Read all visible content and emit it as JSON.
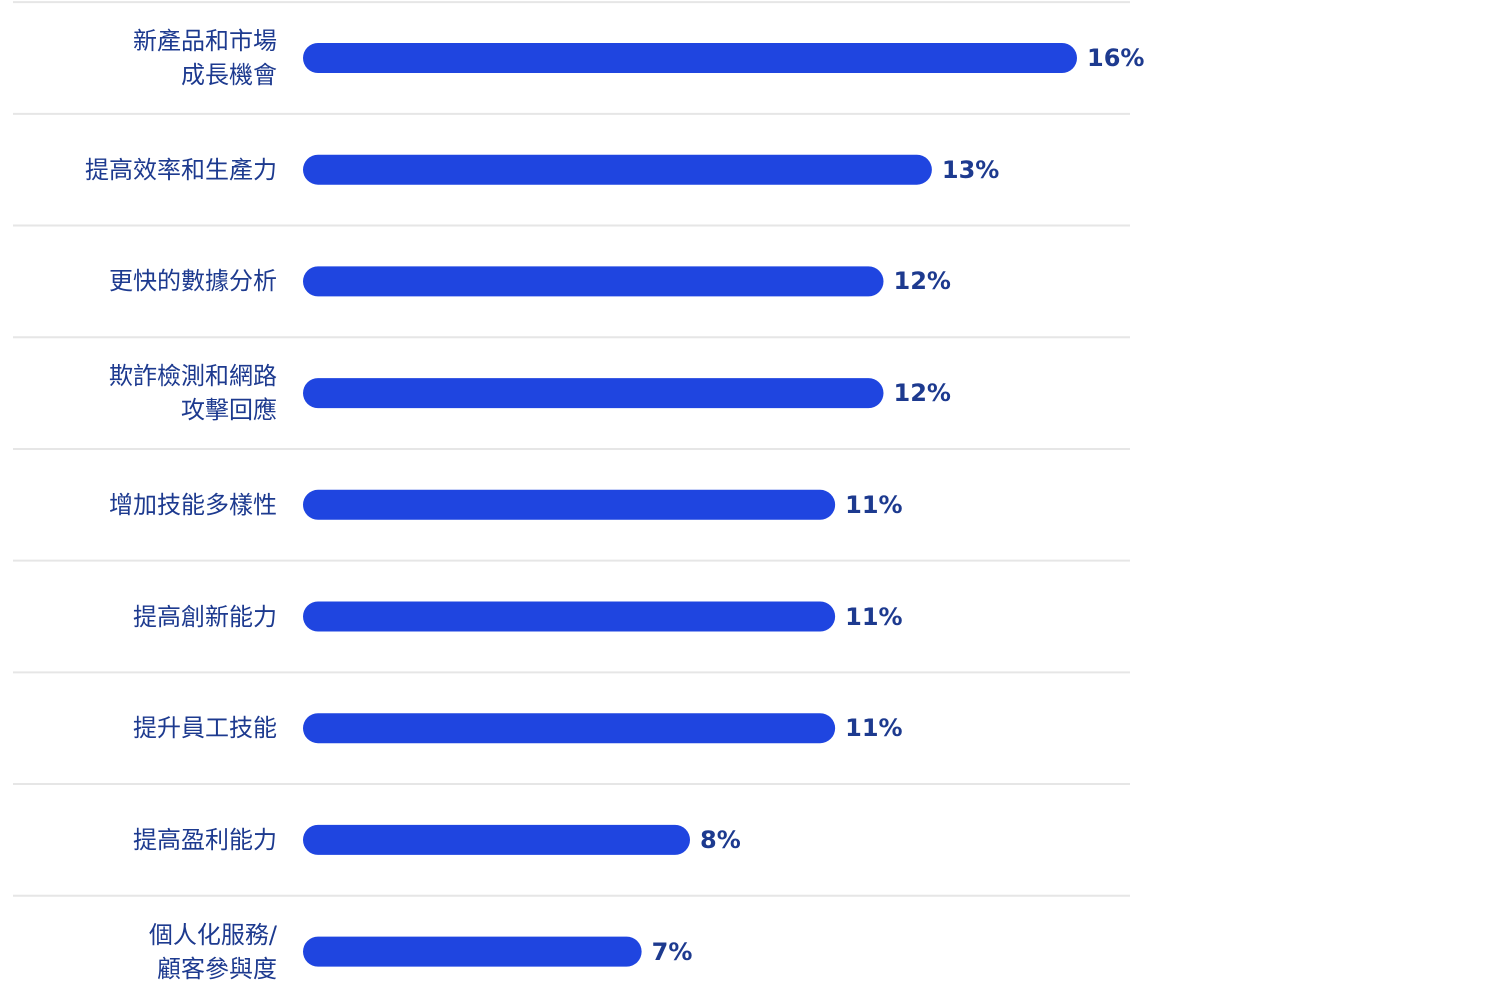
{
  "chart_data": {
    "type": "bar",
    "orientation": "horizontal",
    "categories": [
      "新產品和市場\n成長機會",
      "提高效率和生產力",
      "更快的數據分析",
      "欺詐檢測和網路\n攻擊回應",
      "增加技能多樣性",
      "提高創新能力",
      "提升員工技能",
      "提高盈利能力",
      "個人化服務/\n顧客參與度"
    ],
    "values": [
      16,
      13,
      12,
      12,
      11,
      11,
      11,
      8,
      7
    ],
    "value_labels": [
      "16%",
      "13%",
      "12%",
      "12%",
      "11%",
      "11%",
      "11%",
      "8%",
      "7%"
    ],
    "color": "#1f45e0"
  }
}
